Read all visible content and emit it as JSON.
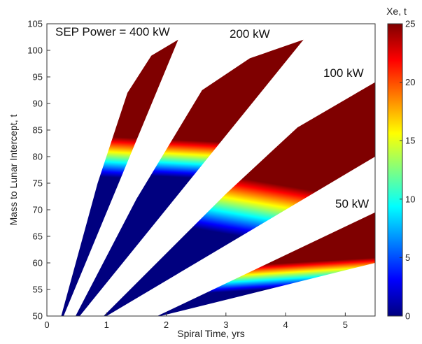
{
  "chart_data": {
    "type": "area",
    "xlabel": "Spiral Time, yrs",
    "ylabel": "Mass to Lunar Intercept, t",
    "xlim": [
      0,
      5.5
    ],
    "ylim": [
      50,
      105
    ],
    "xticks": [
      0,
      1,
      2,
      3,
      4,
      5
    ],
    "yticks": [
      50,
      55,
      60,
      65,
      70,
      75,
      80,
      85,
      90,
      95,
      100,
      105
    ],
    "colorbar": {
      "title": "Xe, t",
      "range": [
        0,
        25
      ],
      "ticks": [
        0,
        5,
        10,
        15,
        20,
        25
      ],
      "colormap": "jet"
    },
    "grid": false,
    "annotations": [
      {
        "text": "SEP Power = 400 kW"
      },
      {
        "text": "200 kW"
      },
      {
        "text": "100 kW"
      },
      {
        "text": "50 kW"
      }
    ],
    "series": [
      {
        "name": "400 kW",
        "xe_low": [
          [
            0.28,
            50
          ],
          [
            2.2,
            102
          ]
        ],
        "xe_high": [
          [
            0.24,
            50
          ],
          [
            0.85,
            75
          ],
          [
            1.35,
            92
          ],
          [
            1.75,
            99
          ],
          [
            2.2,
            102
          ]
        ]
      },
      {
        "name": "200 kW",
        "xe_low": [
          [
            0.55,
            50
          ],
          [
            4.3,
            102
          ]
        ],
        "xe_high": [
          [
            0.48,
            50
          ],
          [
            1.5,
            72
          ],
          [
            2.6,
            92.5
          ],
          [
            3.4,
            98.5
          ],
          [
            4.3,
            102
          ]
        ]
      },
      {
        "name": "100 kW",
        "xe_low": [
          [
            1.0,
            50
          ],
          [
            5.5,
            80
          ]
        ],
        "xe_high": [
          [
            0.95,
            50
          ],
          [
            3.0,
            73
          ],
          [
            4.2,
            85.5
          ],
          [
            5.5,
            94
          ]
        ]
      },
      {
        "name": "50 kW",
        "xe_low": [
          [
            1.9,
            50
          ],
          [
            5.5,
            60
          ]
        ],
        "xe_high": [
          [
            1.85,
            50
          ],
          [
            5.5,
            69.5
          ]
        ]
      }
    ]
  }
}
